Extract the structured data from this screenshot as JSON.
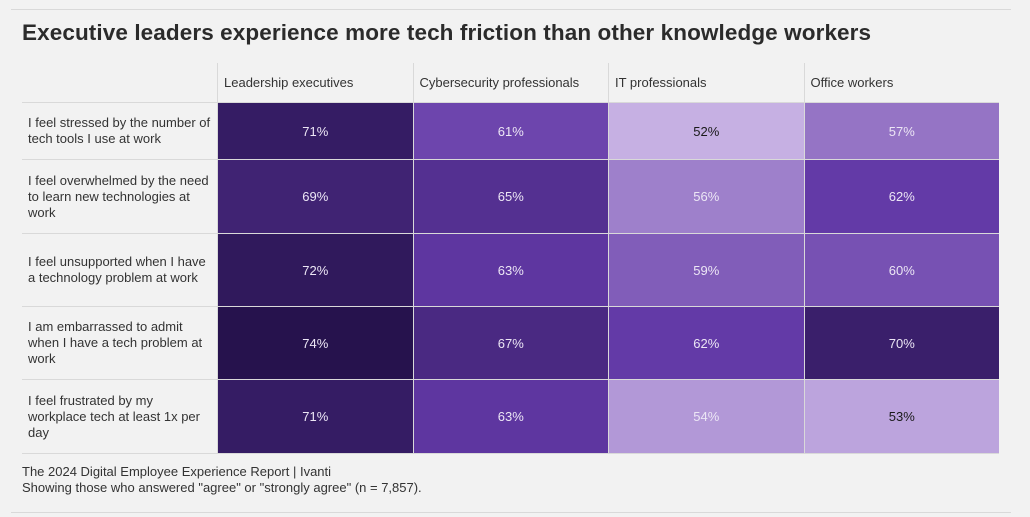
{
  "chart_data": {
    "type": "heatmap",
    "title": "Executive leaders experience more tech friction than other knowledge workers",
    "columns": [
      "Leadership executives",
      "Cybersecurity professionals",
      "IT professionals",
      "Office workers"
    ],
    "rows": [
      "I feel stressed by the number of tech tools I use at work",
      "I feel overwhelmed by the need to learn new technologies at work",
      "I feel unsupported when I have a technology problem at work",
      "I am embarrassed to admit when I have a tech problem at work",
      "I feel frustrated by my workplace tech at least 1x per day"
    ],
    "values": [
      [
        71,
        61,
        52,
        57
      ],
      [
        69,
        65,
        56,
        62
      ],
      [
        72,
        63,
        59,
        60
      ],
      [
        74,
        67,
        62,
        70
      ],
      [
        71,
        63,
        54,
        53
      ]
    ],
    "value_format": "percent",
    "color_scale": {
      "min": 52,
      "max": 74,
      "low_color": "#c6b0e3",
      "high_color": "#26124d"
    }
  },
  "footer": {
    "source": "The 2024 Digital Employee Experience Report | Ivanti",
    "note": "Showing those who answered \"agree\" or \"strongly agree\" (n = 7,857)."
  }
}
